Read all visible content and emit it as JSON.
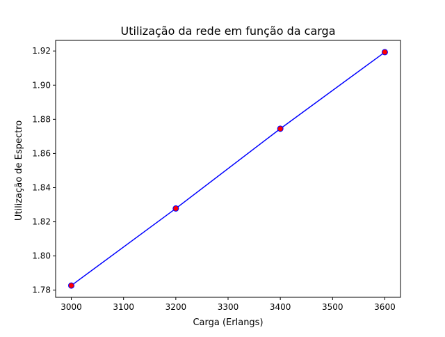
{
  "chart_data": {
    "type": "line",
    "title": "Utilização da rede em função da carga",
    "xlabel": "Carga (Erlangs)",
    "ylabel": "Utilização de Espectro",
    "xlim": [
      2970,
      3630
    ],
    "ylim": [
      1.7758,
      1.9262
    ],
    "x_ticks": [
      3000,
      3100,
      3200,
      3300,
      3400,
      3500,
      3600
    ],
    "x_tick_labels": [
      "3000",
      "3100",
      "3200",
      "3300",
      "3400",
      "3500",
      "3600"
    ],
    "y_ticks": [
      1.78,
      1.8,
      1.82,
      1.84,
      1.86,
      1.88,
      1.9,
      1.92
    ],
    "y_tick_labels": [
      "1.78",
      "1.80",
      "1.82",
      "1.84",
      "1.86",
      "1.88",
      "1.90",
      "1.92"
    ],
    "grid": false,
    "series": [
      {
        "x": [
          3000,
          3200,
          3400,
          3600
        ],
        "values": [
          1.7827,
          1.8278,
          1.8745,
          1.9193
        ],
        "line_color": "#0000ff",
        "marker_face_color": "#ff0000",
        "marker_edge_color": "#0000ff",
        "marker": "circle"
      }
    ]
  }
}
